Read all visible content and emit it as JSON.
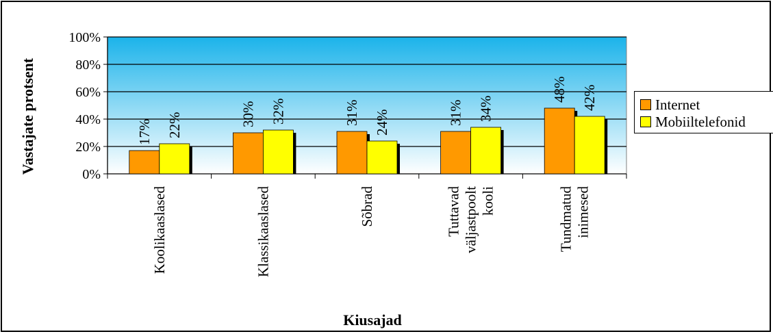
{
  "chart_data": {
    "type": "bar",
    "categories": [
      [
        "Koolikaaslased"
      ],
      [
        "Klassikaaslased"
      ],
      [
        "Sõbrad"
      ],
      [
        "Tuttavad",
        "väljastpoolt",
        "kooli"
      ],
      [
        "Tundmatud",
        "inimesed"
      ]
    ],
    "series": [
      {
        "name": "Internet",
        "values": [
          17,
          30,
          31,
          31,
          48
        ],
        "labels": [
          "17%",
          "30%",
          "31%",
          "31%",
          "48%"
        ],
        "color": "#FF9900"
      },
      {
        "name": "Mobiiltelefonid",
        "values": [
          22,
          32,
          24,
          34,
          42
        ],
        "labels": [
          "22%",
          "32%",
          "24%",
          "34%",
          "42%"
        ],
        "color": "#FFFF00"
      }
    ],
    "xlabel": "Kiusajad",
    "ylabel": "Vastajate protsent",
    "ylim": [
      0,
      100
    ],
    "yticks": [
      "0%",
      "20%",
      "40%",
      "60%",
      "80%",
      "100%"
    ],
    "grid": true,
    "legend_position": "right",
    "plot_background": [
      "#1BB3EA",
      "#FFFFFF"
    ]
  }
}
